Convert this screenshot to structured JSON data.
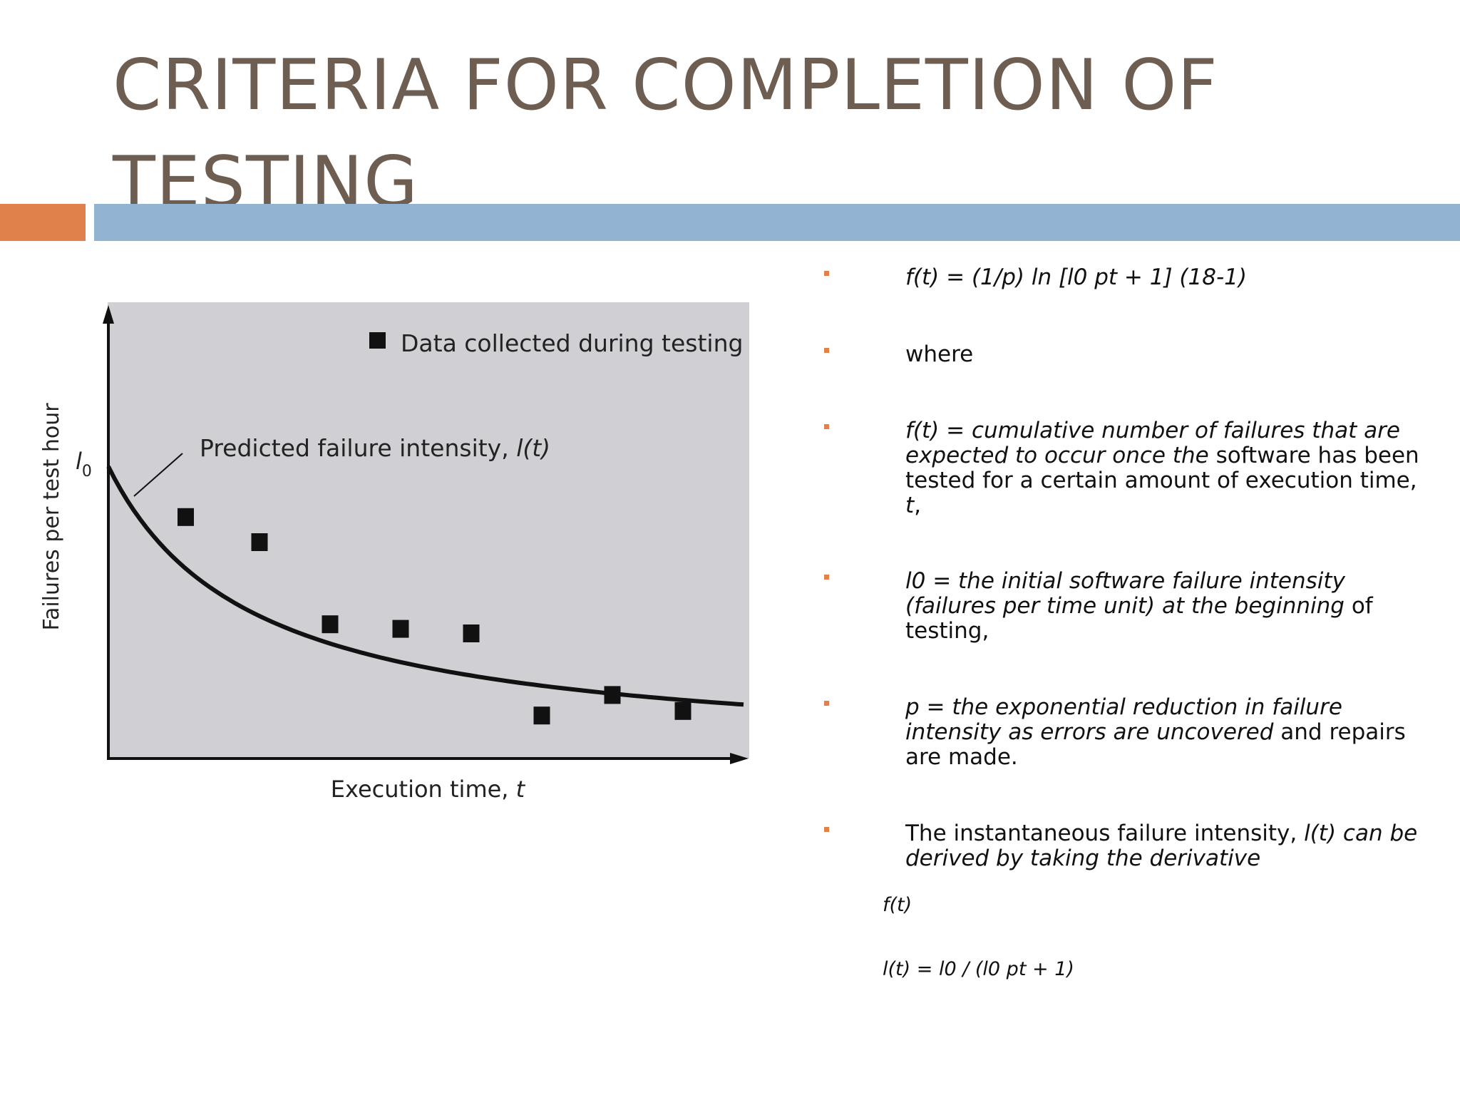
{
  "title": "CRITERIA FOR COMPLETION OF TESTING",
  "colors": {
    "title": "#6e5e52",
    "accent_orange": "#e0804a",
    "accent_blue": "#92b4d2",
    "plot_bg": "#d0cfd3"
  },
  "figure": {
    "y_label": "Failures per test hour",
    "y_marker": "l",
    "y_marker_sub": "0",
    "x_label": "Execution time, ",
    "x_label_var": "t",
    "legend": "Data collected during testing",
    "curve_label": "Predicted failure intensity, ",
    "curve_label_var": "l(t)"
  },
  "chart_data": {
    "type": "scatter",
    "xlabel": "Execution time, t",
    "ylabel": "Failures per test hour",
    "points": [
      {
        "x": 0.12,
        "y": 0.53
      },
      {
        "x": 0.235,
        "y": 0.475
      },
      {
        "x": 0.345,
        "y": 0.295
      },
      {
        "x": 0.455,
        "y": 0.285
      },
      {
        "x": 0.565,
        "y": 0.275
      },
      {
        "x": 0.675,
        "y": 0.095
      },
      {
        "x": 0.785,
        "y": 0.14
      },
      {
        "x": 0.895,
        "y": 0.105
      }
    ],
    "curve": {
      "l0": 0.64,
      "p": 3.3
    }
  },
  "bullets": [
    {
      "plain": "",
      "italic": "f(t) = (1/p) ln [l0 pt + 1] (18-1)",
      "tail": ""
    },
    {
      "plain": "where",
      "italic": "",
      "tail": ""
    },
    {
      "plain": "",
      "italic": "f(t) = cumulative number of failures that are expected to occur once the",
      "tail": "        software has been tested for a certain amount of execution time, ",
      "tail_italic": "t",
      "tail2": ","
    },
    {
      "plain": "",
      "italic": "l0 = the initial software failure intensity (failures per time unit) at the beginning",
      "tail": " of testing,"
    },
    {
      "plain": "",
      "italic": "p = the exponential reduction in failure intensity as errors are uncovered",
      "tail": " and repairs are made."
    },
    {
      "plain": "The instantaneous failure intensity, ",
      "italic": "l(t) can be derived by taking the derivative",
      "tail": ""
    }
  ],
  "derivative_of": "f(t)",
  "formula": "l(t) = l0 / (l0 pt + 1)"
}
